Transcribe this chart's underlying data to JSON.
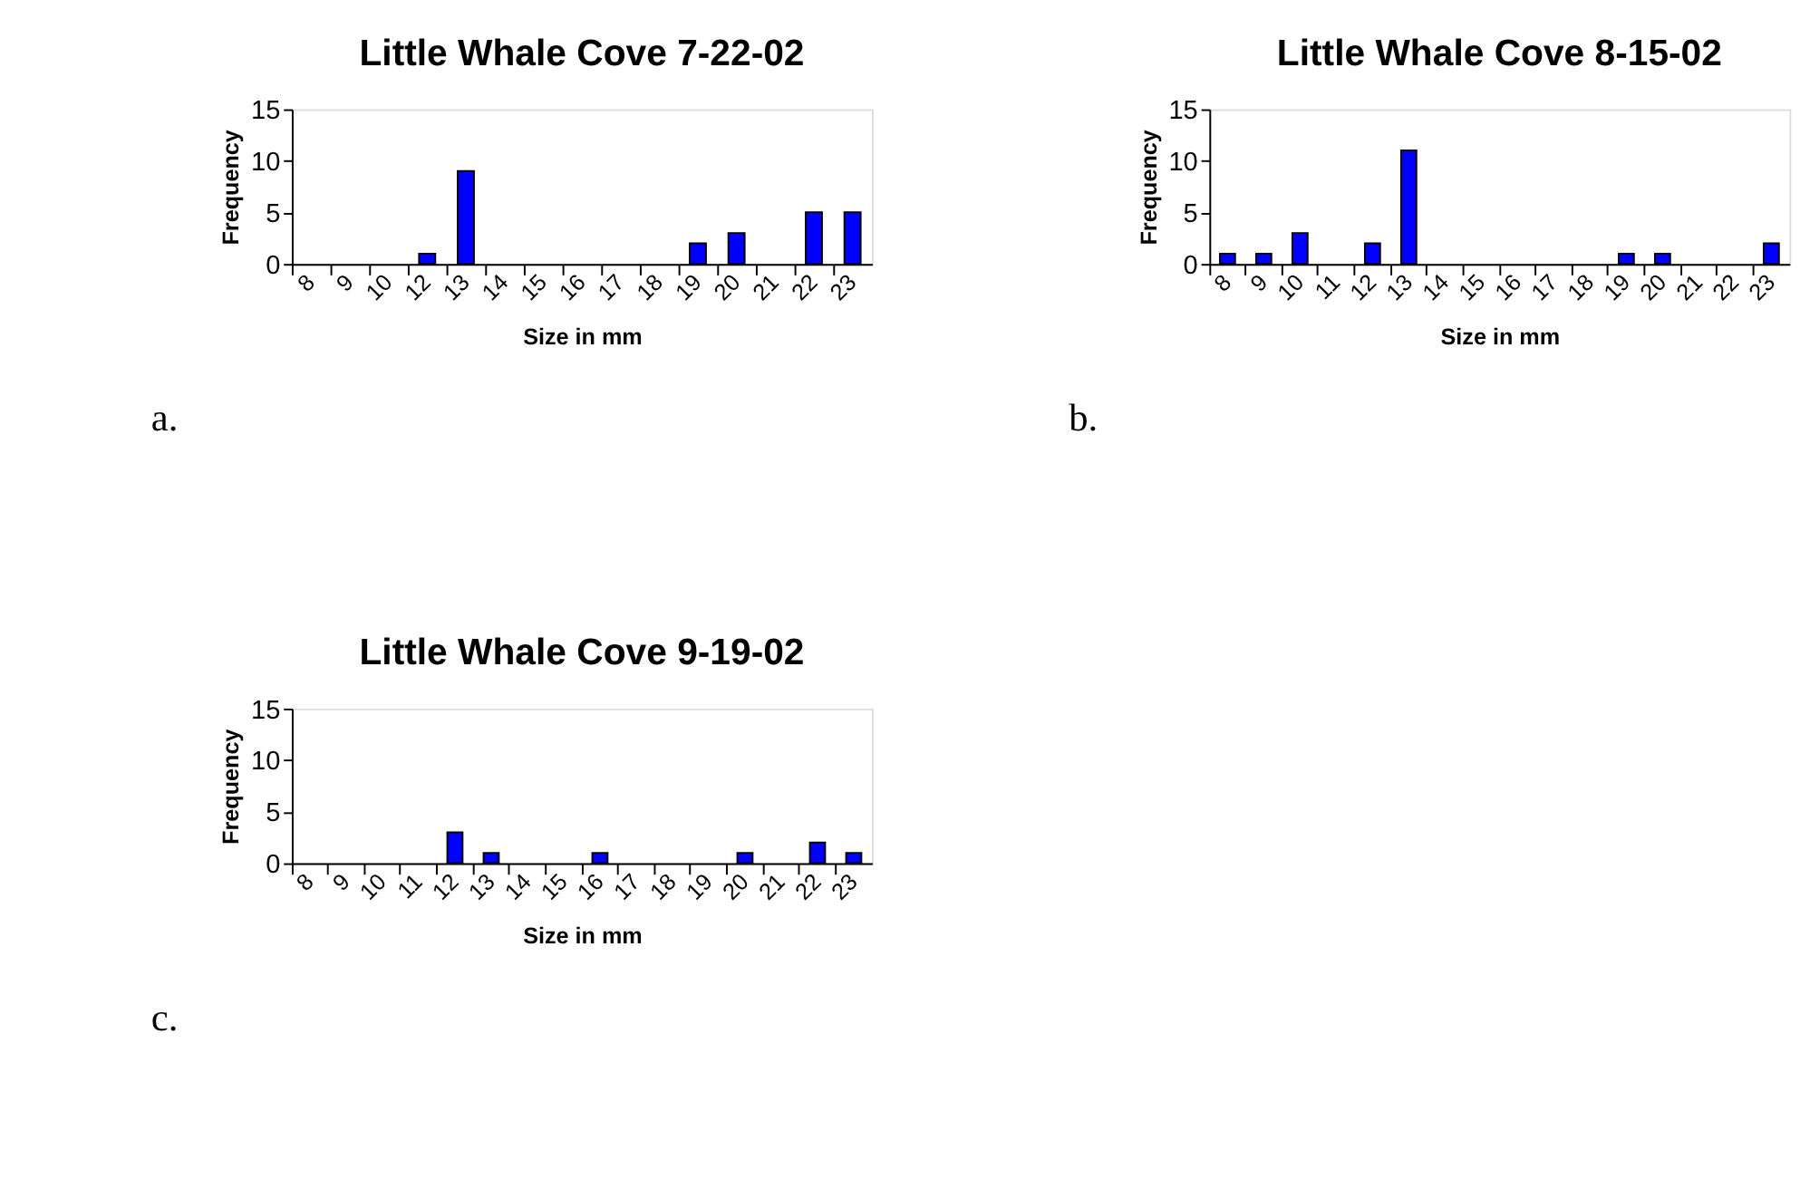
{
  "chart_data": [
    {
      "type": "bar",
      "title": "Little Whale Cove 7-22-02",
      "xlabel": "Size in mm",
      "ylabel": "Frequency",
      "categories": [
        "8",
        "9",
        "10",
        "12",
        "13",
        "14",
        "15",
        "16",
        "17",
        "18",
        "19",
        "20",
        "21",
        "22",
        "23"
      ],
      "values": [
        0,
        0,
        0,
        1,
        9,
        0,
        0,
        0,
        0,
        0,
        2,
        3,
        0,
        5,
        5
      ],
      "color": "#0000ff",
      "ylim": [
        0,
        15
      ],
      "yticks": [
        0,
        5,
        10,
        15
      ],
      "grid": false,
      "annotations": [
        "a."
      ]
    },
    {
      "type": "bar",
      "title": "Little Whale Cove 8-15-02",
      "xlabel": "Size in mm",
      "ylabel": "Frequency",
      "categories": [
        "8",
        "9",
        "10",
        "11",
        "12",
        "13",
        "14",
        "15",
        "16",
        "17",
        "18",
        "19",
        "20",
        "21",
        "22",
        "23"
      ],
      "values": [
        1,
        1,
        3,
        0,
        2,
        11,
        0,
        0,
        0,
        0,
        0,
        1,
        1,
        0,
        0,
        2
      ],
      "color": "#0000ff",
      "ylim": [
        0,
        15
      ],
      "yticks": [
        0,
        5,
        10,
        15
      ],
      "grid": false,
      "annotations": [
        "b."
      ]
    },
    {
      "type": "bar",
      "title": "Little Whale Cove 9-19-02",
      "xlabel": "Size in mm",
      "ylabel": "Frequency",
      "categories": [
        "8",
        "9",
        "10",
        "11",
        "12",
        "13",
        "14",
        "15",
        "16",
        "17",
        "18",
        "19",
        "20",
        "21",
        "22",
        "23"
      ],
      "values": [
        0,
        0,
        0,
        0,
        3,
        1,
        0,
        0,
        1,
        0,
        0,
        0,
        1,
        0,
        2,
        1
      ],
      "color": "#0000ff",
      "ylim": [
        0,
        15
      ],
      "yticks": [
        0,
        5,
        10,
        15
      ],
      "grid": false,
      "annotations": [
        "c."
      ]
    }
  ]
}
